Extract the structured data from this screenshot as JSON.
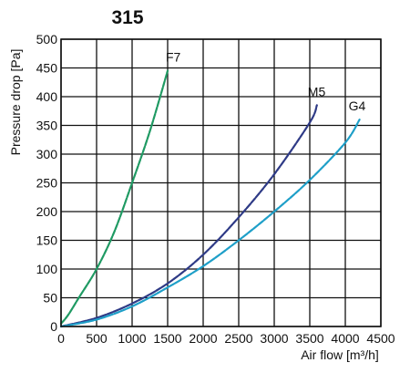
{
  "chart_data": {
    "type": "line",
    "title": "315",
    "xlabel": "Air flow [m³/h]",
    "ylabel": "Pressure drop [Pa]",
    "xlim": [
      0,
      4500
    ],
    "ylim": [
      0,
      500
    ],
    "xticks": [
      0,
      500,
      1000,
      1500,
      2000,
      2500,
      3000,
      3500,
      4000,
      4500
    ],
    "yticks": [
      0,
      50,
      100,
      150,
      200,
      250,
      300,
      350,
      400,
      450,
      500
    ],
    "grid": true,
    "legend": "none",
    "series": [
      {
        "name": "F7",
        "color": "#1f9a63",
        "x": [
          0,
          100,
          250,
          500,
          750,
          1000,
          1250,
          1500
        ],
        "y": [
          5,
          20,
          50,
          100,
          165,
          250,
          340,
          445
        ]
      },
      {
        "name": "M5",
        "color": "#2e3a86",
        "x": [
          0,
          500,
          1000,
          1500,
          2000,
          2500,
          3000,
          3500,
          3600
        ],
        "y": [
          0,
          15,
          40,
          75,
          125,
          190,
          265,
          355,
          385
        ]
      },
      {
        "name": "G4",
        "color": "#1e9fc8",
        "x": [
          0,
          500,
          1000,
          1500,
          2000,
          2500,
          3000,
          3500,
          4000,
          4200
        ],
        "y": [
          0,
          12,
          35,
          68,
          105,
          150,
          200,
          255,
          320,
          360
        ]
      }
    ]
  }
}
